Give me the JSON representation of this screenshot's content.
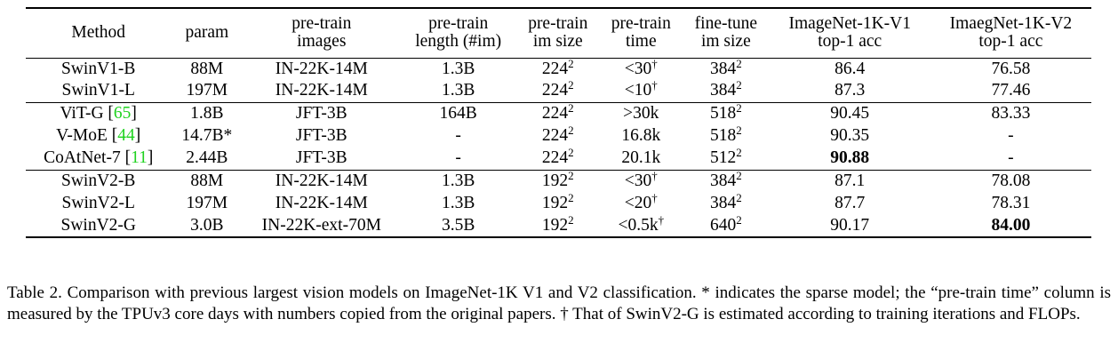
{
  "table": {
    "headers": [
      [
        "Method"
      ],
      [
        "param"
      ],
      [
        "pre-train",
        "images"
      ],
      [
        "pre-train",
        "length (#im)"
      ],
      [
        "pre-train",
        "im size"
      ],
      [
        "pre-train",
        "time"
      ],
      [
        "fine-tune",
        "im size"
      ],
      [
        "ImageNet-1K-V1",
        "top-1 acc"
      ],
      [
        "ImaegNet-1K-V2",
        "top-1 acc"
      ]
    ],
    "groups": [
      [
        {
          "method": "SwinV1-B",
          "param": "88M",
          "images": "IN-22K-14M",
          "length": "1.3B",
          "pt_size": "224",
          "pt_size_sup": "2",
          "time": "<30",
          "time_sup": "†",
          "ft_size": "384",
          "ft_size_sup": "2",
          "v1": "86.4",
          "v2": "76.58"
        },
        {
          "method": "SwinV1-L",
          "param": "197M",
          "images": "IN-22K-14M",
          "length": "1.3B",
          "pt_size": "224",
          "pt_size_sup": "2",
          "time": "<10",
          "time_sup": "†",
          "ft_size": "384",
          "ft_size_sup": "2",
          "v1": "87.3",
          "v2": "77.46"
        }
      ],
      [
        {
          "method": "ViT-G [",
          "ref": "65",
          "method_end": "]",
          "param": "1.8B",
          "images": "JFT-3B",
          "length": "164B",
          "pt_size": "224",
          "pt_size_sup": "2",
          "time": ">30k",
          "ft_size": "518",
          "ft_size_sup": "2",
          "v1": "90.45",
          "v2": "83.33"
        },
        {
          "method": "V-MoE [",
          "ref": "44",
          "method_end": "]",
          "param": "14.7B*",
          "images": "JFT-3B",
          "length": "-",
          "pt_size": "224",
          "pt_size_sup": "2",
          "time": "16.8k",
          "ft_size": "518",
          "ft_size_sup": "2",
          "v1": "90.35",
          "v2": "-"
        },
        {
          "method": "CoAtNet-7 [",
          "ref": "11",
          "method_end": "]",
          "param": "2.44B",
          "images": "JFT-3B",
          "length": "-",
          "pt_size": "224",
          "pt_size_sup": "2",
          "time": "20.1k",
          "ft_size": "512",
          "ft_size_sup": "2",
          "v1": "90.88",
          "v1_bold": true,
          "v2": "-"
        }
      ],
      [
        {
          "method": "SwinV2-B",
          "param": "88M",
          "images": "IN-22K-14M",
          "length": "1.3B",
          "pt_size": "192",
          "pt_size_sup": "2",
          "time": "<30",
          "time_sup": "†",
          "ft_size": "384",
          "ft_size_sup": "2",
          "v1": "87.1",
          "v2": "78.08"
        },
        {
          "method": "SwinV2-L",
          "param": "197M",
          "images": "IN-22K-14M",
          "length": "1.3B",
          "pt_size": "192",
          "pt_size_sup": "2",
          "time": "<20",
          "time_sup": "†",
          "ft_size": "384",
          "ft_size_sup": "2",
          "v1": "87.7",
          "v2": "78.31"
        },
        {
          "method": "SwinV2-G",
          "param": "3.0B",
          "images": "IN-22K-ext-70M",
          "length": "3.5B",
          "pt_size": "192",
          "pt_size_sup": "2",
          "time": "<0.5k",
          "time_sup": "†",
          "ft_size": "640",
          "ft_size_sup": "2",
          "v1": "90.17",
          "v2": "84.00",
          "v2_bold": true
        }
      ]
    ]
  },
  "caption": "Table 2.  Comparison with previous largest vision models on ImageNet-1K V1 and V2 classification.  * indicates the sparse model; the “pre-train time” column is measured by the TPUv3 core days with numbers copied from the original papers.  † That of SwinV2-G is estimated according to training iterations and FLOPs."
}
